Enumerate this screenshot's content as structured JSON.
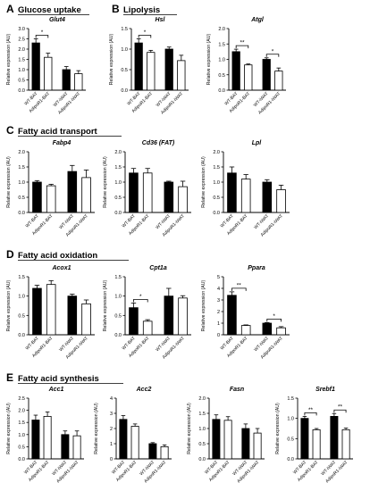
{
  "figure": {
    "sections": [
      {
        "letter": "A",
        "title": "Glucose uptake"
      },
      {
        "letter": "B",
        "title": "Lipolysis"
      },
      {
        "letter": "C",
        "title": "Fatty acid transport"
      },
      {
        "letter": "D",
        "title": "Fatty acid oxidation"
      },
      {
        "letter": "E",
        "title": "Fatty acid synthesis"
      }
    ],
    "group_labels": [
      "WT-BAT",
      "AdipoR1-BAT",
      "WT-iWAT",
      "AdipoR1-iWAT"
    ],
    "colors": {
      "wt": "#000000",
      "ko": "#ffffff",
      "axis": "#000000"
    }
  },
  "chart_data": [
    {
      "type": "bar",
      "gene": "Glut4",
      "ylabel": "Relative expression (AU)",
      "ylim": [
        0,
        3
      ],
      "yticks": [
        "0.0",
        "0.5",
        "1.0",
        "1.5",
        "2.0",
        "2.5",
        "3.0"
      ],
      "categories": [
        "WT-BAT",
        "AdipoR1-BAT",
        "WT-iWAT",
        "AdipoR1-iWAT"
      ],
      "values": [
        2.3,
        1.6,
        1.0,
        0.8
      ],
      "errors": [
        0.2,
        0.2,
        0.15,
        0.15
      ],
      "significance": [
        {
          "pair": [
            0,
            1
          ],
          "label": "*"
        }
      ]
    },
    {
      "type": "bar",
      "gene": "Hsl",
      "ylabel": "Relative expression (AU)",
      "ylim": [
        0,
        1.5
      ],
      "yticks": [
        "0.0",
        "0.5",
        "1.0",
        "1.5"
      ],
      "categories": [
        "WT-BAT",
        "AdipoR1-BAT",
        "WT-iWAT",
        "AdipoR1-iWAT"
      ],
      "values": [
        1.15,
        0.92,
        1.0,
        0.72
      ],
      "errors": [
        0.1,
        0.05,
        0.05,
        0.13
      ],
      "significance": [
        {
          "pair": [
            0,
            1
          ],
          "label": "*"
        }
      ]
    },
    {
      "type": "bar",
      "gene": "Atgl",
      "ylabel": "Relative expression (AU)",
      "ylim": [
        0,
        2
      ],
      "yticks": [
        "0.0",
        "0.5",
        "1.0",
        "1.5",
        "2.0"
      ],
      "categories": [
        "WT-BAT",
        "AdipoR1-BAT",
        "WT-iWAT",
        "AdipoR1-iWAT"
      ],
      "values": [
        1.25,
        0.82,
        1.0,
        0.62
      ],
      "errors": [
        0.08,
        0.03,
        0.05,
        0.1
      ],
      "significance": [
        {
          "pair": [
            0,
            1
          ],
          "label": "**"
        },
        {
          "pair": [
            2,
            3
          ],
          "label": "*"
        }
      ]
    },
    {
      "type": "bar",
      "gene": "Fabp4",
      "ylabel": "Relative expression (AU)",
      "ylim": [
        0,
        2
      ],
      "yticks": [
        "0.0",
        "0.5",
        "1.0",
        "1.5",
        "2.0"
      ],
      "categories": [
        "WT-BAT",
        "AdipoR1-BAT",
        "WT-iWAT",
        "AdipoR1-iWAT"
      ],
      "values": [
        1.0,
        0.88,
        1.35,
        1.15
      ],
      "errors": [
        0.05,
        0.05,
        0.2,
        0.25
      ],
      "significance": []
    },
    {
      "type": "bar",
      "gene": "Cd36 (FAT)",
      "ylabel": "Relative expression (AU)",
      "ylim": [
        0,
        2
      ],
      "yticks": [
        "0.0",
        "0.5",
        "1.0",
        "1.5",
        "2.0"
      ],
      "categories": [
        "WT-BAT",
        "AdipoR1-BAT",
        "WT-iWAT",
        "AdipoR1-iWAT"
      ],
      "values": [
        1.3,
        1.3,
        1.0,
        0.85
      ],
      "errors": [
        0.15,
        0.15,
        0.03,
        0.18
      ],
      "significance": []
    },
    {
      "type": "bar",
      "gene": "Lpl",
      "ylabel": "Relative expression (AU)",
      "ylim": [
        0,
        2
      ],
      "yticks": [
        "0.0",
        "0.5",
        "1.0",
        "1.5",
        "2.0"
      ],
      "categories": [
        "WT-BAT",
        "AdipoR1-BAT",
        "WT-iWAT",
        "AdipoR1-iWAT"
      ],
      "values": [
        1.3,
        1.1,
        1.0,
        0.75
      ],
      "errors": [
        0.2,
        0.15,
        0.08,
        0.15
      ],
      "significance": []
    },
    {
      "type": "bar",
      "gene": "Acox1",
      "ylabel": "Relative expression (AU)",
      "ylim": [
        0,
        1.5
      ],
      "yticks": [
        "0.0",
        "0.5",
        "1.0",
        "1.5"
      ],
      "categories": [
        "WT-BAT",
        "AdipoR1-BAT",
        "WT-iWAT",
        "AdipoR1-iWAT"
      ],
      "values": [
        1.2,
        1.3,
        1.0,
        0.8
      ],
      "errors": [
        0.08,
        0.1,
        0.05,
        0.1
      ],
      "significance": []
    },
    {
      "type": "bar",
      "gene": "Cpt1a",
      "ylabel": "Relative expression (AU)",
      "ylim": [
        0,
        1.5
      ],
      "yticks": [
        "0.0",
        "0.5",
        "1.0",
        "1.5"
      ],
      "categories": [
        "WT-BAT",
        "AdipoR1-BAT",
        "WT-iWAT",
        "AdipoR1-iWAT"
      ],
      "values": [
        0.7,
        0.35,
        1.0,
        0.95
      ],
      "errors": [
        0.12,
        0.04,
        0.2,
        0.06
      ],
      "significance": [
        {
          "pair": [
            0,
            1
          ],
          "label": "*"
        }
      ]
    },
    {
      "type": "bar",
      "gene": "Ppara",
      "ylabel": "Relative expression (AU)",
      "ylim": [
        0,
        5
      ],
      "yticks": [
        "0",
        "1",
        "2",
        "3",
        "4",
        "5"
      ],
      "categories": [
        "WT-BAT",
        "AdipoR1-BAT",
        "WT-iWAT",
        "AdipoR1-iWAT"
      ],
      "values": [
        3.4,
        0.8,
        1.0,
        0.6
      ],
      "errors": [
        0.3,
        0.05,
        0.05,
        0.1
      ],
      "significance": [
        {
          "pair": [
            0,
            1
          ],
          "label": "**"
        },
        {
          "pair": [
            2,
            3
          ],
          "label": "*"
        }
      ]
    },
    {
      "type": "bar",
      "gene": "Acc1",
      "ylabel": "Relative expression (AU)",
      "ylim": [
        0,
        2.5
      ],
      "yticks": [
        "0.0",
        "0.5",
        "1.0",
        "1.5",
        "2.0",
        "2.5"
      ],
      "categories": [
        "WT-BAT",
        "AdipoR1-BAT",
        "WT-iWAT",
        "AdipoR1-iWAT"
      ],
      "values": [
        1.6,
        1.75,
        1.0,
        0.95
      ],
      "errors": [
        0.2,
        0.18,
        0.15,
        0.2
      ],
      "significance": []
    },
    {
      "type": "bar",
      "gene": "Acc2",
      "ylabel": "Relative expression (AU)",
      "ylim": [
        0,
        4
      ],
      "yticks": [
        "0",
        "1",
        "2",
        "3",
        "4"
      ],
      "categories": [
        "WT-BAT",
        "AdipoR1-BAT",
        "WT-iWAT",
        "AdipoR1-iWAT"
      ],
      "values": [
        2.6,
        2.15,
        1.0,
        0.8
      ],
      "errors": [
        0.25,
        0.15,
        0.07,
        0.12
      ],
      "significance": []
    },
    {
      "type": "bar",
      "gene": "Fasn",
      "ylabel": "Relative expression (AU)",
      "ylim": [
        0,
        2
      ],
      "yticks": [
        "0.0",
        "0.5",
        "1.0",
        "1.5",
        "2.0"
      ],
      "categories": [
        "WT-BAT",
        "AdipoR1-BAT",
        "WT-iWAT",
        "AdipoR1-iWAT"
      ],
      "values": [
        1.3,
        1.27,
        1.0,
        0.85
      ],
      "errors": [
        0.15,
        0.12,
        0.15,
        0.15
      ],
      "significance": []
    },
    {
      "type": "bar",
      "gene": "Srebf1",
      "ylabel": "Relative expression (AU)",
      "ylim": [
        0,
        1.5
      ],
      "yticks": [
        "0.0",
        "0.5",
        "1.0",
        "1.5"
      ],
      "categories": [
        "WT-BAT",
        "AdipoR1-BAT",
        "WT-iWAT",
        "AdipoR1-iWAT"
      ],
      "values": [
        1.0,
        0.72,
        1.05,
        0.72
      ],
      "errors": [
        0.05,
        0.03,
        0.07,
        0.04
      ],
      "significance": [
        {
          "pair": [
            0,
            1
          ],
          "label": "**"
        },
        {
          "pair": [
            2,
            3
          ],
          "label": "**"
        }
      ]
    }
  ]
}
